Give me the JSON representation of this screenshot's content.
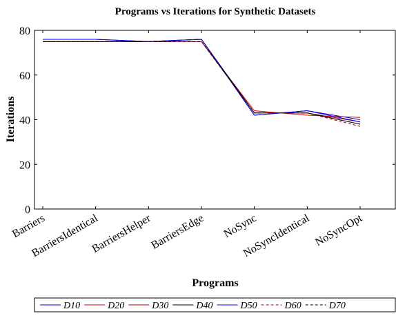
{
  "chart_data": {
    "type": "line",
    "title": "Programs vs Iterations for Synthetic Datasets",
    "x_label": "Programs",
    "y_label": "Iterations",
    "categories": [
      "Barriers",
      "BarriersIdentical",
      "BarriersHelper",
      "BarriersEdge",
      "NoSync",
      "NoSyncIdentical",
      "NoSyncOpt"
    ],
    "series": [
      {
        "name": "D10",
        "color": "#0000cc",
        "dashed": false,
        "values": [
          76,
          76,
          75,
          76,
          42,
          44,
          40
        ]
      },
      {
        "name": "D20",
        "color": "#e00000",
        "dashed": false,
        "values": [
          75,
          75,
          75,
          75,
          44,
          42,
          41
        ]
      },
      {
        "name": "D30",
        "color": "#b00000",
        "dashed": false,
        "values": [
          75,
          75,
          75,
          75,
          43,
          43,
          39
        ]
      },
      {
        "name": "D40",
        "color": "#000000",
        "dashed": false,
        "values": [
          75,
          75,
          75,
          76,
          43,
          43,
          38
        ]
      },
      {
        "name": "D50",
        "color": "#0000ff",
        "dashed": false,
        "values": [
          76,
          76,
          75,
          76,
          42,
          44,
          39
        ]
      },
      {
        "name": "D60",
        "color": "#b00000",
        "dashed": true,
        "values": [
          75,
          75,
          75,
          75,
          43,
          43,
          37
        ]
      },
      {
        "name": "D70",
        "color": "#000000",
        "dashed": true,
        "values": [
          75,
          75,
          75,
          75,
          43,
          43,
          38
        ]
      }
    ],
    "ylim": [
      0,
      80
    ],
    "yticks": [
      0,
      20,
      40,
      60,
      80
    ]
  }
}
